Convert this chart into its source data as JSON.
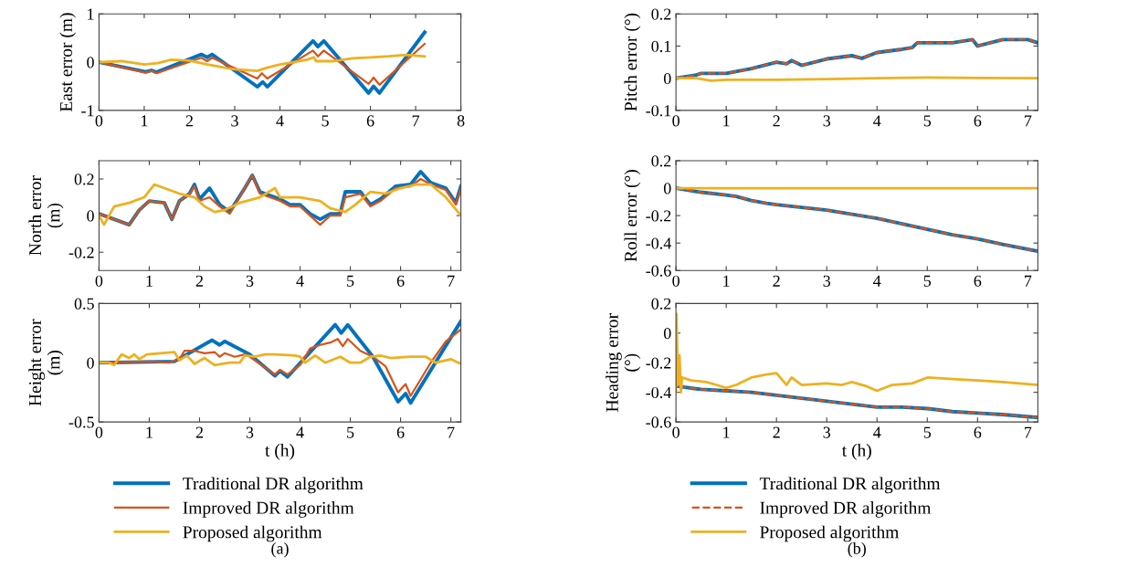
{
  "chart_data": [
    {
      "type": "line",
      "ylabel": "East error (m)",
      "xlim": [
        0,
        8
      ],
      "xticks": [
        0,
        1,
        2,
        3,
        4,
        5,
        6,
        7,
        8
      ],
      "ylim": [
        -1,
        1
      ],
      "yticks": [
        -1,
        0,
        1
      ],
      "grid": false,
      "legend": false,
      "tick_labels": true,
      "series": [
        {
          "color": "#0072bd",
          "line_style": "solid",
          "x": [
            0,
            1.03,
            1.16,
            1.27,
            2.26,
            2.39,
            2.5,
            3.5,
            3.62,
            3.72,
            4.73,
            4.84,
            4.97,
            5.96,
            6.07,
            6.2,
            7.2
          ],
          "values": [
            0,
            -0.2,
            -0.17,
            -0.21,
            0.16,
            0.1,
            0.16,
            -0.51,
            -0.41,
            -0.51,
            0.44,
            0.32,
            0.44,
            -0.64,
            -0.5,
            -0.64,
            0.62
          ]
        },
        {
          "color": "#d95319",
          "line_style": "solid",
          "x": [
            0,
            1.03,
            1.16,
            1.27,
            2.26,
            2.39,
            2.5,
            3.5,
            3.6,
            3.72,
            4.73,
            4.84,
            4.97,
            5.96,
            6.07,
            6.2,
            7.2
          ],
          "values": [
            0,
            -0.22,
            -0.18,
            -0.23,
            0.09,
            0.02,
            0.09,
            -0.34,
            -0.23,
            -0.34,
            0.24,
            0.12,
            0.24,
            -0.45,
            -0.32,
            -0.47,
            0.38
          ]
        },
        {
          "color": "#edb120",
          "line_style": "solid",
          "x": [
            0,
            0.5,
            1,
            1.3,
            1.6,
            2,
            2.4,
            2.7,
            3,
            3.5,
            3.7,
            4,
            4.3,
            4.6,
            4.75,
            4.8,
            5.2,
            5.6,
            6,
            6.4,
            6.8,
            7.2
          ],
          "values": [
            0,
            0.02,
            -0.05,
            -0.02,
            0.05,
            0.03,
            -0.05,
            -0.1,
            -0.15,
            -0.18,
            -0.12,
            -0.05,
            0,
            0.05,
            0.1,
            0.02,
            0.02,
            0.08,
            0.1,
            0.12,
            0.15,
            0.12
          ]
        }
      ]
    },
    {
      "type": "line",
      "ylabel": "Pitch error (°)",
      "xlim": [
        0,
        7.2
      ],
      "xticks": [
        0,
        1,
        2,
        3,
        4,
        5,
        6,
        7
      ],
      "ylim": [
        -0.1,
        0.2
      ],
      "yticks": [
        -0.1,
        0,
        0.1,
        0.2
      ],
      "grid": false,
      "legend": false,
      "series": [
        {
          "color": "#0072bd",
          "line_style": "solid",
          "x": [
            0,
            0.4,
            0.5,
            1,
            1.5,
            2,
            2.2,
            2.3,
            2.5,
            3,
            3.5,
            3.7,
            4,
            4.5,
            4.7,
            4.8,
            5,
            5.5,
            5.9,
            6,
            6.5,
            7,
            7.2
          ],
          "values": [
            0,
            0.01,
            0.015,
            0.015,
            0.03,
            0.05,
            0.045,
            0.055,
            0.04,
            0.06,
            0.07,
            0.062,
            0.08,
            0.09,
            0.095,
            0.11,
            0.11,
            0.11,
            0.12,
            0.1,
            0.12,
            0.12,
            0.11
          ]
        },
        {
          "color": "#d95319",
          "line_style": "dashed",
          "x": [
            0,
            0.4,
            0.5,
            1,
            1.5,
            2,
            2.2,
            2.3,
            2.5,
            3,
            3.5,
            3.7,
            4,
            4.5,
            4.7,
            4.8,
            5,
            5.5,
            5.9,
            6,
            6.5,
            7,
            7.2
          ],
          "values": [
            0,
            0.01,
            0.015,
            0.015,
            0.03,
            0.05,
            0.045,
            0.055,
            0.04,
            0.06,
            0.07,
            0.062,
            0.08,
            0.09,
            0.095,
            0.11,
            0.11,
            0.11,
            0.12,
            0.1,
            0.12,
            0.12,
            0.11
          ]
        },
        {
          "color": "#edb120",
          "line_style": "solid",
          "x": [
            0,
            0.4,
            0.7,
            1,
            2,
            3,
            4,
            5,
            6,
            7.2
          ],
          "values": [
            0,
            0,
            -0.008,
            -0.005,
            -0.005,
            -0.003,
            0,
            0.002,
            0.001,
            0
          ]
        }
      ]
    },
    {
      "type": "line",
      "ylabel": "North error\n(m)",
      "xlim": [
        0,
        7.2
      ],
      "xticks": [
        0,
        1,
        2,
        3,
        4,
        5,
        6,
        7
      ],
      "ylim": [
        -0.3,
        0.3
      ],
      "yticks": [
        -0.2,
        0,
        0.2
      ],
      "grid": false,
      "legend": false,
      "series": [
        {
          "color": "#0072bd",
          "line_style": "solid",
          "x": [
            0,
            0.4,
            0.6,
            0.8,
            1,
            1.3,
            1.45,
            1.6,
            1.8,
            1.9,
            2,
            2.2,
            2.4,
            2.6,
            2.9,
            3.05,
            3.2,
            3.6,
            3.8,
            4,
            4.2,
            4.4,
            4.6,
            4.8,
            4.9,
            5.2,
            5.4,
            5.6,
            5.9,
            6.2,
            6.4,
            6.6,
            6.9,
            7.1,
            7.2
          ],
          "values": [
            0.01,
            -0.03,
            -0.05,
            0.03,
            0.08,
            0.07,
            -0.02,
            0.08,
            0.12,
            0.17,
            0.09,
            0.15,
            0.06,
            0.02,
            0.15,
            0.22,
            0.13,
            0.09,
            0.06,
            0.06,
            0.01,
            -0.02,
            0.01,
            0.01,
            0.13,
            0.13,
            0.06,
            0.09,
            0.16,
            0.17,
            0.24,
            0.18,
            0.15,
            0.07,
            0.16
          ]
        },
        {
          "color": "#d95319",
          "line_style": "solid",
          "x": [
            0,
            0.4,
            0.6,
            0.8,
            1,
            1.3,
            1.45,
            1.6,
            1.8,
            1.9,
            2,
            2.2,
            2.4,
            2.6,
            2.9,
            3.05,
            3.2,
            3.6,
            3.8,
            4,
            4.2,
            4.4,
            4.6,
            4.8,
            4.9,
            5.2,
            5.4,
            5.6,
            5.9,
            6.2,
            6.4,
            6.6,
            6.9,
            7.1,
            7.2
          ],
          "values": [
            0.01,
            -0.03,
            -0.05,
            0.03,
            0.08,
            0.07,
            -0.02,
            0.08,
            0.12,
            0.16,
            0.08,
            0.1,
            0.05,
            0.01,
            0.15,
            0.22,
            0.12,
            0.08,
            0.05,
            0.05,
            0,
            -0.05,
            0,
            0,
            0.1,
            0.12,
            0.05,
            0.08,
            0.15,
            0.16,
            0.2,
            0.17,
            0.14,
            0.06,
            0.15
          ]
        },
        {
          "color": "#edb120",
          "line_style": "solid",
          "x": [
            0,
            0.1,
            0.3,
            0.6,
            0.9,
            1.1,
            1.3,
            1.6,
            1.9,
            2.1,
            2.3,
            2.5,
            2.8,
            3.2,
            3.5,
            3.6,
            4,
            4.4,
            4.6,
            4.9,
            5.1,
            5.4,
            5.7,
            6,
            6.3,
            6.6,
            6.9,
            7.2
          ],
          "values": [
            0,
            -0.05,
            0.05,
            0.07,
            0.1,
            0.17,
            0.15,
            0.12,
            0.1,
            0.05,
            0.02,
            0.03,
            0.07,
            0.1,
            0.15,
            0.1,
            0.1,
            0.08,
            0.04,
            0.02,
            0.06,
            0.13,
            0.12,
            0.15,
            0.17,
            0.17,
            0.1,
            0
          ]
        }
      ]
    },
    {
      "type": "line",
      "ylabel": "Roll error (°)",
      "xlim": [
        0,
        7.2
      ],
      "xticks": [
        0,
        1,
        2,
        3,
        4,
        5,
        6,
        7
      ],
      "ylim": [
        -0.6,
        0.2
      ],
      "yticks": [
        -0.6,
        -0.4,
        -0.2,
        0,
        0.2
      ],
      "grid": false,
      "legend": false,
      "series": [
        {
          "color": "#0072bd",
          "line_style": "solid",
          "x": [
            0,
            0.5,
            1,
            1.2,
            1.5,
            1.8,
            2,
            2.5,
            3,
            3.5,
            4,
            4.5,
            5,
            5.5,
            6,
            6.5,
            7.2
          ],
          "values": [
            0,
            -0.03,
            -0.05,
            -0.06,
            -0.09,
            -0.11,
            -0.12,
            -0.14,
            -0.16,
            -0.19,
            -0.22,
            -0.26,
            -0.3,
            -0.34,
            -0.37,
            -0.41,
            -0.46
          ]
        },
        {
          "color": "#d95319",
          "line_style": "dashed",
          "x": [
            0,
            0.5,
            1,
            1.2,
            1.5,
            1.8,
            2,
            2.5,
            3,
            3.5,
            4,
            4.5,
            5,
            5.5,
            6,
            6.5,
            7.2
          ],
          "values": [
            0,
            -0.03,
            -0.05,
            -0.06,
            -0.09,
            -0.11,
            -0.12,
            -0.14,
            -0.16,
            -0.19,
            -0.22,
            -0.26,
            -0.3,
            -0.34,
            -0.37,
            -0.41,
            -0.46
          ]
        },
        {
          "color": "#edb120",
          "line_style": "solid",
          "x": [
            0,
            3,
            7.2
          ],
          "values": [
            0,
            0,
            0
          ]
        }
      ]
    },
    {
      "type": "line",
      "ylabel": "Height error\n(m)",
      "xlabel": "t (h)",
      "xlim": [
        0,
        7.2
      ],
      "xticks": [
        0,
        1,
        2,
        3,
        4,
        5,
        6,
        7
      ],
      "ylim": [
        -0.5,
        0.5
      ],
      "yticks": [
        -0.5,
        0,
        0.5
      ],
      "grid": false,
      "legend": "bottom",
      "annotations": [
        "(a)"
      ],
      "series": [
        {
          "name": "Traditional DR algorithm",
          "color": "#0072bd",
          "line_style": "solid",
          "x": [
            0,
            1.5,
            2.25,
            2.4,
            2.5,
            3,
            3.5,
            3.6,
            3.75,
            4.7,
            4.82,
            4.95,
            5.45,
            5.95,
            6.1,
            6.2,
            7.2
          ],
          "values": [
            0,
            0.01,
            0.19,
            0.15,
            0.18,
            0.07,
            -0.11,
            -0.07,
            -0.12,
            0.32,
            0.25,
            0.32,
            0.05,
            -0.33,
            -0.26,
            -0.34,
            0.35
          ]
        },
        {
          "name": "Improved DR algorithm",
          "color": "#d95319",
          "line_style": "solid",
          "x": [
            0,
            1,
            1.4,
            1.6,
            1.7,
            1.9,
            2.1,
            2.3,
            2.4,
            2.5,
            2.7,
            2.9,
            3,
            3.5,
            3.6,
            3.75,
            4,
            4.2,
            4.4,
            4.6,
            4.75,
            4.85,
            4.95,
            5.2,
            5.45,
            5.7,
            5.95,
            6.1,
            6.2,
            6.6,
            6.9,
            7.2
          ],
          "values": [
            0,
            0.01,
            0,
            0.03,
            0.1,
            0.1,
            0.08,
            0.09,
            0.05,
            0.08,
            0.05,
            0.07,
            0.05,
            -0.1,
            -0.06,
            -0.1,
            -0.02,
            0.12,
            0.15,
            0.17,
            0.2,
            0.14,
            0.2,
            0.1,
            0.05,
            -0.03,
            -0.25,
            -0.18,
            -0.28,
            0,
            0.18,
            0.28
          ]
        },
        {
          "name": "Proposed algorithm",
          "color": "#edb120",
          "line_style": "solid",
          "x": [
            0,
            0.2,
            0.3,
            0.45,
            0.6,
            0.7,
            0.8,
            0.95,
            1.5,
            1.6,
            1.75,
            1.9,
            2.1,
            2.3,
            2.6,
            2.8,
            2.9,
            3.1,
            3.3,
            3.5,
            3.9,
            4,
            4.1,
            4.3,
            4.5,
            4.8,
            5,
            5.2,
            5.4,
            5.6,
            5.8,
            6.2,
            6.5,
            6.7,
            7,
            7.2
          ],
          "values": [
            0,
            0,
            -0.02,
            0.07,
            0.04,
            0.07,
            0.03,
            0.07,
            0.09,
            0.02,
            0.06,
            -0.01,
            0.04,
            -0.02,
            0,
            0,
            0.06,
            0.05,
            0.07,
            0.07,
            0.06,
            0.05,
            0,
            0.06,
            0,
            0.05,
            0,
            0,
            0.05,
            0.06,
            0.04,
            0.05,
            0.05,
            0,
            0.03,
            -0.01
          ]
        }
      ]
    },
    {
      "type": "line",
      "ylabel": "Heading error\n(°)",
      "xlabel": "t (h)",
      "xlim": [
        0,
        7.2
      ],
      "xticks": [
        0,
        1,
        2,
        3,
        4,
        5,
        6,
        7
      ],
      "ylim": [
        -0.6,
        0.2
      ],
      "yticks": [
        -0.6,
        -0.4,
        -0.2,
        0,
        0.2
      ],
      "grid": false,
      "legend": "bottom",
      "annotations": [
        "(b)"
      ],
      "series": [
        {
          "name": "Traditional DR algorithm",
          "color": "#0072bd",
          "line_style": "solid",
          "x": [
            0.05,
            0.5,
            1,
            1.5,
            2,
            2.5,
            3,
            3.5,
            4,
            4.5,
            5,
            5.5,
            6,
            6.5,
            7.2
          ],
          "values": [
            -0.36,
            -0.38,
            -0.39,
            -0.4,
            -0.42,
            -0.44,
            -0.46,
            -0.48,
            -0.5,
            -0.5,
            -0.51,
            -0.53,
            -0.54,
            -0.55,
            -0.57
          ]
        },
        {
          "name": "Improved DR algorithm",
          "color": "#d95319",
          "line_style": "dashed",
          "x": [
            0.05,
            0.5,
            1,
            1.5,
            2,
            2.5,
            3,
            3.5,
            4,
            4.5,
            5,
            5.5,
            6,
            6.5,
            7.2
          ],
          "values": [
            -0.36,
            -0.38,
            -0.39,
            -0.4,
            -0.42,
            -0.44,
            -0.46,
            -0.48,
            -0.5,
            -0.5,
            -0.51,
            -0.53,
            -0.54,
            -0.55,
            -0.57
          ]
        },
        {
          "name": "Proposed algorithm",
          "color": "#edb120",
          "line_style": "solid",
          "x": [
            0,
            0.01,
            0.04,
            0.07,
            0.1,
            0.12,
            0.3,
            0.6,
            0.8,
            1,
            1.2,
            1.5,
            1.8,
            2,
            2.2,
            2.3,
            2.5,
            3,
            3.3,
            3.5,
            3.8,
            4,
            4.3,
            4.7,
            5,
            5.5,
            6,
            6.5,
            7.2
          ],
          "values": [
            -0.4,
            0.13,
            -0.35,
            -0.15,
            -0.4,
            -0.3,
            -0.32,
            -0.33,
            -0.35,
            -0.37,
            -0.35,
            -0.3,
            -0.28,
            -0.27,
            -0.35,
            -0.3,
            -0.35,
            -0.34,
            -0.35,
            -0.33,
            -0.36,
            -0.39,
            -0.35,
            -0.34,
            -0.3,
            -0.31,
            -0.32,
            -0.33,
            -0.35
          ]
        }
      ]
    }
  ]
}
